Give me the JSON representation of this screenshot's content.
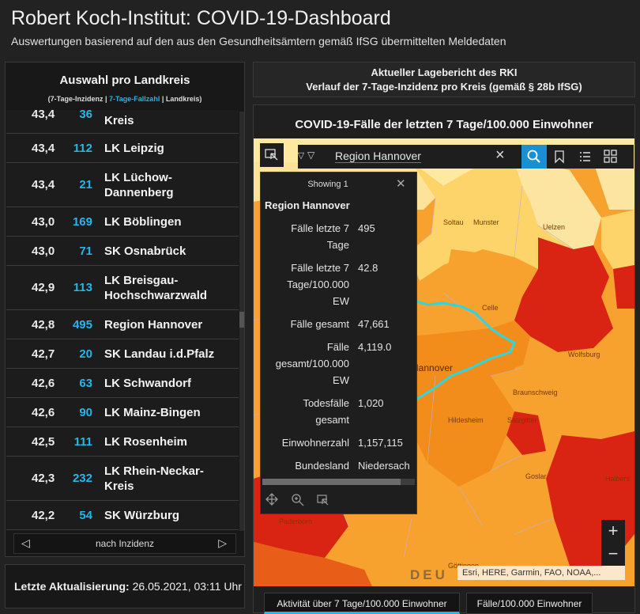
{
  "header": {
    "title": "Robert Koch-Institut: COVID-19-Dashboard",
    "subtitle": "Auswertungen basierend auf den aus den Gesundheitsämtern gemäß IfSG übermittelten Meldedaten"
  },
  "left_panel": {
    "title": "Auswahl pro Landkreis",
    "sub_a": "(7-Tage-Inzidenz | ",
    "sub_b": "7-Tage-Fallzahl",
    "sub_c": " | Landkreis)",
    "rows": [
      {
        "inzidenz": "43,4",
        "faelle": "36",
        "name": "Kreis"
      },
      {
        "inzidenz": "43,4",
        "faelle": "112",
        "name": "LK Leipzig"
      },
      {
        "inzidenz": "43,4",
        "faelle": "21",
        "name": "LK Lüchow-\nDannenberg"
      },
      {
        "inzidenz": "43,0",
        "faelle": "169",
        "name": "LK Böblingen"
      },
      {
        "inzidenz": "43,0",
        "faelle": "71",
        "name": "SK Osnabrück"
      },
      {
        "inzidenz": "42,9",
        "faelle": "113",
        "name": "LK Breisgau-\nHochschwarzwald"
      },
      {
        "inzidenz": "42,8",
        "faelle": "495",
        "name": "Region Hannover"
      },
      {
        "inzidenz": "42,7",
        "faelle": "20",
        "name": "SK Landau i.d.Pfalz"
      },
      {
        "inzidenz": "42,6",
        "faelle": "63",
        "name": "LK Schwandorf"
      },
      {
        "inzidenz": "42,6",
        "faelle": "90",
        "name": "LK Mainz-Bingen"
      },
      {
        "inzidenz": "42,5",
        "faelle": "111",
        "name": "LK Rosenheim"
      },
      {
        "inzidenz": "42,3",
        "faelle": "232",
        "name": "LK Rhein-Neckar-\nKreis"
      },
      {
        "inzidenz": "42,2",
        "faelle": "54",
        "name": "SK Würzburg"
      }
    ],
    "pager_label": "nach Inzidenz",
    "pager_prev": "◁",
    "pager_next": "▷"
  },
  "update": {
    "label": "Letzte Aktualisierung:",
    "value": " 26.05.2021, 03:11 Uhr"
  },
  "report": {
    "line1": "Aktueller Lagebericht des RKI",
    "line2": "Verlauf der 7-Tage-Inzidenz pro Kreis (gemäß § 28b IfSG)"
  },
  "map_panel": {
    "title": "COVID-19-Fälle der letzten 7 Tage/100.000 Einwohner",
    "search_value": "Region Hannover",
    "popup": {
      "header": "Showing 1",
      "region": "Region Hannover",
      "fields": [
        {
          "key": "Fälle letzte 7\nTage",
          "value": "495"
        },
        {
          "key": "Fälle letzte 7\nTage/100.000\nEW",
          "value": "42.8"
        },
        {
          "key": "Fälle gesamt",
          "value": "47,661"
        },
        {
          "key": "Fälle\ngesamt/100.000\nEW",
          "value": "4,119.0"
        },
        {
          "key": "Todesfälle\ngesamt",
          "value": "1,020"
        },
        {
          "key": "Einwohnerzahl",
          "value": "1,157,115"
        },
        {
          "key": "Bundesland",
          "value": "Niedersach"
        }
      ]
    },
    "place_labels": [
      "Soltau",
      "Munster",
      "Uelzen",
      "Celle",
      "Hannover",
      "Wolfsburg",
      "Braunschweig",
      "Hildesheim",
      "Salzgitter",
      "Goslar",
      "Halbers",
      "Paderborn",
      "Göttingen"
    ],
    "watermark": "DEU",
    "attribution": "Esri, HERE, Garmin, FAO, NOAA,...",
    "zoom_in": "+",
    "zoom_out": "−",
    "tabs": [
      "Aktivität über 7 Tage/100.000 Einwohner",
      "Fälle/100.000 Einwohner"
    ],
    "colors": {
      "accent": "#23b5e8",
      "dark_red": "#d92414",
      "orange": "#f7a12e",
      "light_yellow": "#fde9a0"
    }
  }
}
